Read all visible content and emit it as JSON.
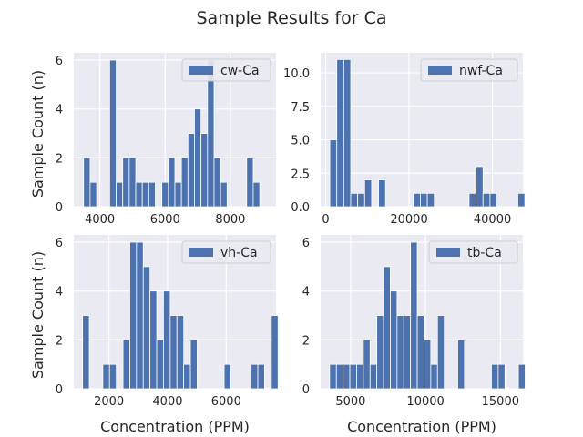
{
  "figure": {
    "suptitle": "Sample Results for Ca",
    "shared_ylabel": "Sample Count (n)",
    "shared_xlabel": "Concentration (PPM)"
  },
  "colors": {
    "bar": "#4c72b0",
    "panel_bg": "#eaeaf2",
    "grid": "#ffffff",
    "text": "#262626"
  },
  "chart_data": [
    {
      "type": "bar",
      "subtype": "histogram",
      "legend": "cw-Ca",
      "legend_position": "upper right",
      "ylabel": "Sample Count (n)",
      "xlabel": "",
      "xlim": [
        3200,
        9400
      ],
      "ylim": [
        0,
        6.3
      ],
      "xticks": [
        4000,
        6000,
        8000
      ],
      "xticklabels": [
        "4000",
        "6000",
        "8000"
      ],
      "yticks": [
        0,
        2,
        4,
        6
      ],
      "yticklabels": [
        "0",
        "2",
        "4",
        "6"
      ],
      "bin_start": 3500,
      "bin_width": 200,
      "values": [
        2,
        1,
        0,
        0,
        6,
        1,
        2,
        2,
        1,
        1,
        1,
        0,
        1,
        2,
        1,
        2,
        3,
        4,
        3,
        6,
        2,
        1,
        0,
        0,
        0,
        2,
        1
      ],
      "grid": true
    },
    {
      "type": "bar",
      "subtype": "histogram",
      "legend": "nwf-Ca",
      "legend_position": "upper right",
      "ylabel": "",
      "xlabel": "",
      "xlim": [
        -1200,
        47300
      ],
      "ylim": [
        0,
        11.5
      ],
      "xticks": [
        0,
        20000,
        40000
      ],
      "xticklabels": [
        "0",
        "20000",
        "40000"
      ],
      "yticks": [
        0,
        2.5,
        5.0,
        7.5,
        10.0
      ],
      "yticklabels": [
        "0.0",
        "2.5",
        "5.0",
        "7.5",
        "10.0"
      ],
      "bin_start": 1000,
      "bin_width": 1670,
      "values": [
        5,
        11,
        11,
        1,
        1,
        2,
        0,
        2,
        0,
        0,
        0,
        0,
        1,
        1,
        1,
        0,
        0,
        0,
        0,
        0,
        1,
        3,
        1,
        1,
        0,
        0,
        0,
        1
      ],
      "grid": true
    },
    {
      "type": "bar",
      "subtype": "histogram",
      "legend": "vh-Ca",
      "legend_position": "upper right",
      "ylabel": "Sample Count (n)",
      "xlabel": "Concentration (PPM)",
      "xlim": [
        800,
        7700
      ],
      "ylim": [
        0,
        6.3
      ],
      "xticks": [
        2000,
        4000,
        6000
      ],
      "xticklabels": [
        "2000",
        "4000",
        "6000"
      ],
      "yticks": [
        0,
        2,
        4,
        6
      ],
      "yticklabels": [
        "0",
        "2",
        "4",
        "6"
      ],
      "bin_start": 1100,
      "bin_width": 230,
      "values": [
        3,
        0,
        0,
        1,
        1,
        0,
        2,
        6,
        6,
        5,
        4,
        2,
        4,
        3,
        3,
        1,
        2,
        0,
        0,
        0,
        0,
        1,
        0,
        0,
        0,
        1,
        1,
        0,
        3
      ],
      "grid": true
    },
    {
      "type": "bar",
      "subtype": "histogram",
      "legend": "tb-Ca",
      "legend_position": "upper right",
      "ylabel": "",
      "xlabel": "Concentration (PPM)",
      "xlim": [
        3000,
        16500
      ],
      "ylim": [
        0,
        6.3
      ],
      "xticks": [
        5000,
        10000,
        15000
      ],
      "xticklabels": [
        "5000",
        "10000",
        "15000"
      ],
      "yticks": [
        0,
        2,
        4,
        6
      ],
      "yticklabels": [
        "0",
        "2",
        "4",
        "6"
      ],
      "bin_start": 3600,
      "bin_width": 450,
      "values": [
        1,
        1,
        1,
        1,
        1,
        2,
        1,
        3,
        5,
        4,
        3,
        3,
        6,
        3,
        2,
        1,
        3,
        0,
        0,
        2,
        0,
        0,
        0,
        0,
        1,
        1,
        0,
        0,
        1
      ],
      "grid": true
    }
  ]
}
